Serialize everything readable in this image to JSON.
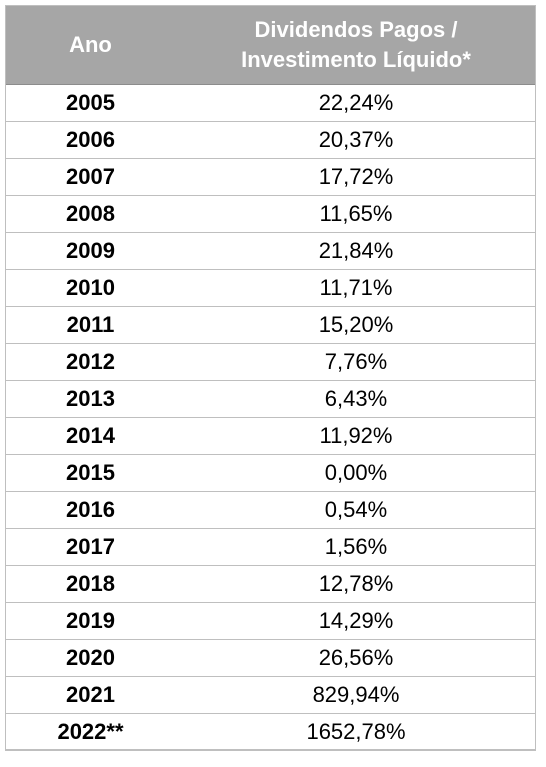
{
  "table": {
    "headers": {
      "year": "Ano",
      "value_line1": "Dividendos Pagos /",
      "value_line2": "Investimento Líquido*"
    },
    "rows": [
      {
        "year": "2005",
        "value": "22,24%"
      },
      {
        "year": "2006",
        "value": "20,37%"
      },
      {
        "year": "2007",
        "value": "17,72%"
      },
      {
        "year": "2008",
        "value": "11,65%"
      },
      {
        "year": "2009",
        "value": "21,84%"
      },
      {
        "year": "2010",
        "value": "11,71%"
      },
      {
        "year": "2011",
        "value": "15,20%"
      },
      {
        "year": "2012",
        "value": "7,76%"
      },
      {
        "year": "2013",
        "value": "6,43%"
      },
      {
        "year": "2014",
        "value": "11,92%"
      },
      {
        "year": "2015",
        "value": "0,00%"
      },
      {
        "year": "2016",
        "value": "0,54%"
      },
      {
        "year": "2017",
        "value": "1,56%"
      },
      {
        "year": "2018",
        "value": "12,78%"
      },
      {
        "year": "2019",
        "value": "14,29%"
      },
      {
        "year": "2020",
        "value": "26,56%"
      },
      {
        "year": "2021",
        "value": "829,94%"
      },
      {
        "year": "2022**",
        "value": "1652,78%"
      }
    ]
  },
  "colors": {
    "header_bg": "#a6a6a6",
    "header_text": "#ffffff",
    "border": "#bfbfbf"
  }
}
